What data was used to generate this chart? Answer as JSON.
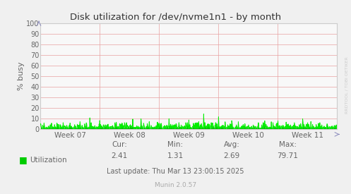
{
  "title": "Disk utilization for /dev/nvme1n1 - by month",
  "ylabel": "% busy",
  "xtick_labels": [
    "Week 07",
    "Week 08",
    "Week 09",
    "Week 10",
    "Week 11"
  ],
  "ytick_vals": [
    0,
    10,
    20,
    30,
    40,
    50,
    60,
    70,
    80,
    90,
    100
  ],
  "ylim": [
    0,
    100
  ],
  "line_color": "#00ee00",
  "fill_color": "#00bb00",
  "bg_color": "#f0f0f0",
  "plot_bg_color": "#f8f8f8",
  "grid_color": "#e8a0a0",
  "border_color": "#cccccc",
  "title_color": "#333333",
  "label_color": "#666666",
  "footer_color": "#aaaaaa",
  "legend_label": "Utilization",
  "legend_color": "#00cc00",
  "cur_val": "2.41",
  "min_val": "1.31",
  "avg_val": "2.69",
  "max_val": "79.71",
  "last_update": "Last update: Thu Mar 13 23:00:15 2025",
  "munin_version": "Munin 2.0.57",
  "watermark": "RRDTOOL / TOBI OETIKER",
  "num_points": 900
}
